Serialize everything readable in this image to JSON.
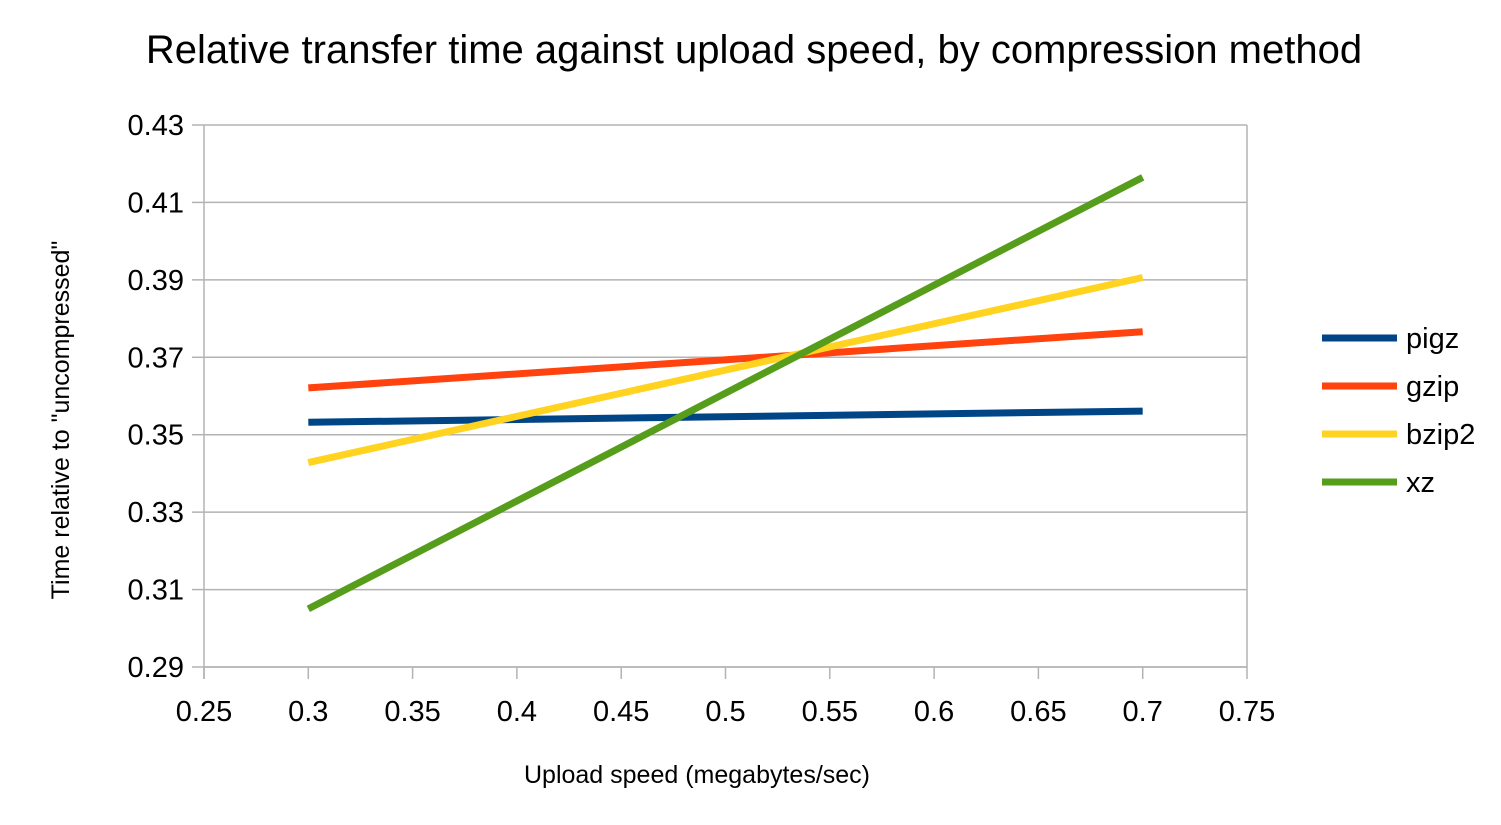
{
  "chart_data": {
    "type": "line",
    "title": "Relative transfer time against upload speed, by compression method",
    "xlabel": "Upload speed (megabytes/sec)",
    "ylabel": "Time relative to \"uncompressed\"",
    "xlim": [
      0.25,
      0.75
    ],
    "ylim": [
      0.29,
      0.43
    ],
    "x_ticks": [
      "0.25",
      "0.3",
      "0.35",
      "0.4",
      "0.45",
      "0.5",
      "0.55",
      "0.6",
      "0.65",
      "0.7",
      "0.75"
    ],
    "y_ticks": [
      "0.29",
      "0.31",
      "0.33",
      "0.35",
      "0.37",
      "0.39",
      "0.41",
      "0.43"
    ],
    "grid": "horizontal",
    "legend_position": "right",
    "series": [
      {
        "name": "pigz",
        "color": "#004586",
        "x": [
          0.3,
          0.7
        ],
        "y": [
          0.3532,
          0.3561
        ]
      },
      {
        "name": "gzip",
        "color": "#ff420e",
        "x": [
          0.3,
          0.7
        ],
        "y": [
          0.3621,
          0.3766
        ]
      },
      {
        "name": "bzip2",
        "color": "#ffd320",
        "x": [
          0.3,
          0.7
        ],
        "y": [
          0.3428,
          0.3906
        ]
      },
      {
        "name": "xz",
        "color": "#579d1c",
        "x": [
          0.3,
          0.7
        ],
        "y": [
          0.305,
          0.4165
        ]
      }
    ]
  }
}
